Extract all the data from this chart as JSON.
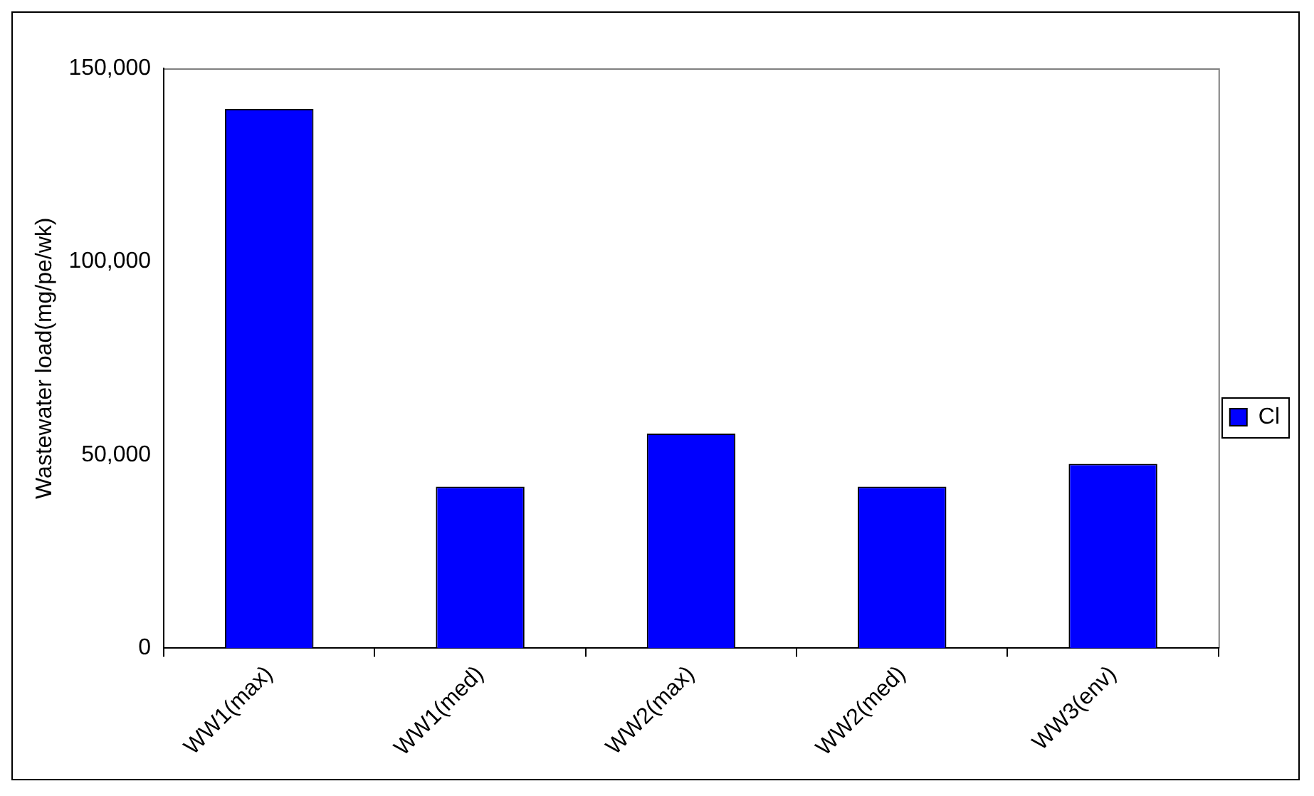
{
  "chart_data": {
    "type": "bar",
    "ylabel": "Wastewater load(mg/pe/wk)",
    "categories": [
      "WW1(max)",
      "WW1(med)",
      "WW2(max)",
      "WW2(med)",
      "WW3(env)"
    ],
    "series": [
      {
        "name": "Cl",
        "color": "#0000ff",
        "values": [
          139500,
          41800,
          55500,
          41800,
          47700
        ]
      }
    ],
    "ylim": [
      0,
      150000
    ],
    "yticks": [
      0,
      {
        "value": 50000,
        "label": "50,000"
      },
      {
        "value": 100000,
        "label": "100,000"
      },
      {
        "value": 150000,
        "label": "150,000"
      }
    ],
    "grid": false,
    "legend": "right"
  }
}
